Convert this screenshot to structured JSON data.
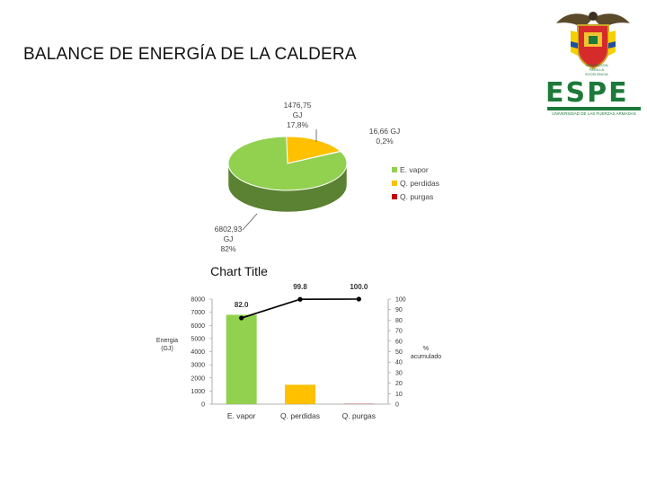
{
  "page": {
    "title": "BALANCE DE ENERGÍA DE LA CALDERA"
  },
  "logo": {
    "word": "ESPE",
    "tagline": "UNIVERSIDAD DE LAS FUERZAS ARMADAS",
    "crest_caption": [
      "INNOVACIÓN",
      "PARA LA EXCELENCIA"
    ]
  },
  "chart_data": [
    {
      "type": "pie",
      "title": "",
      "legend_position": "right",
      "slices": [
        {
          "name": "E. vapor",
          "value": 6802.93,
          "label": [
            "6802,93",
            "GJ",
            "82%"
          ],
          "color": "#92d050"
        },
        {
          "name": "Q. perdidas",
          "value": 1476.75,
          "label": [
            "1476,75",
            "GJ",
            "17,8%"
          ],
          "color": "#ffc000"
        },
        {
          "name": "Q. purgas",
          "value": 16.66,
          "label": [
            "16,66 GJ",
            "0,2%"
          ],
          "color": "#c00000"
        }
      ]
    },
    {
      "type": "bar",
      "title": "Chart Title",
      "categories": [
        "E. vapor",
        "Q. perdidas",
        "Q. purgas"
      ],
      "series": [
        {
          "name": "Energía (GJ)",
          "type": "bar",
          "values": [
            6802.93,
            1476.75,
            16.66
          ],
          "colors": [
            "#92d050",
            "#ffc000",
            "#c00000"
          ]
        },
        {
          "name": "% acumulado",
          "type": "line",
          "axis": "right",
          "values": [
            82.0,
            99.8,
            100.0
          ],
          "labels": [
            "82.0",
            "99.8",
            "100.0"
          ],
          "color": "#000000"
        }
      ],
      "ylabel": [
        "Energia",
        "(GJ)"
      ],
      "y2label": [
        "%",
        "acumulado"
      ],
      "ylim": [
        0,
        8000
      ],
      "yticks": [
        "0",
        "1000",
        "2000",
        "3000",
        "4000",
        "5000",
        "6000",
        "7000",
        "8000"
      ],
      "y2lim": [
        0,
        100
      ],
      "y2ticks": [
        "0",
        "10",
        "20",
        "30",
        "40",
        "50",
        "60",
        "70",
        "80",
        "90",
        "100"
      ]
    }
  ]
}
